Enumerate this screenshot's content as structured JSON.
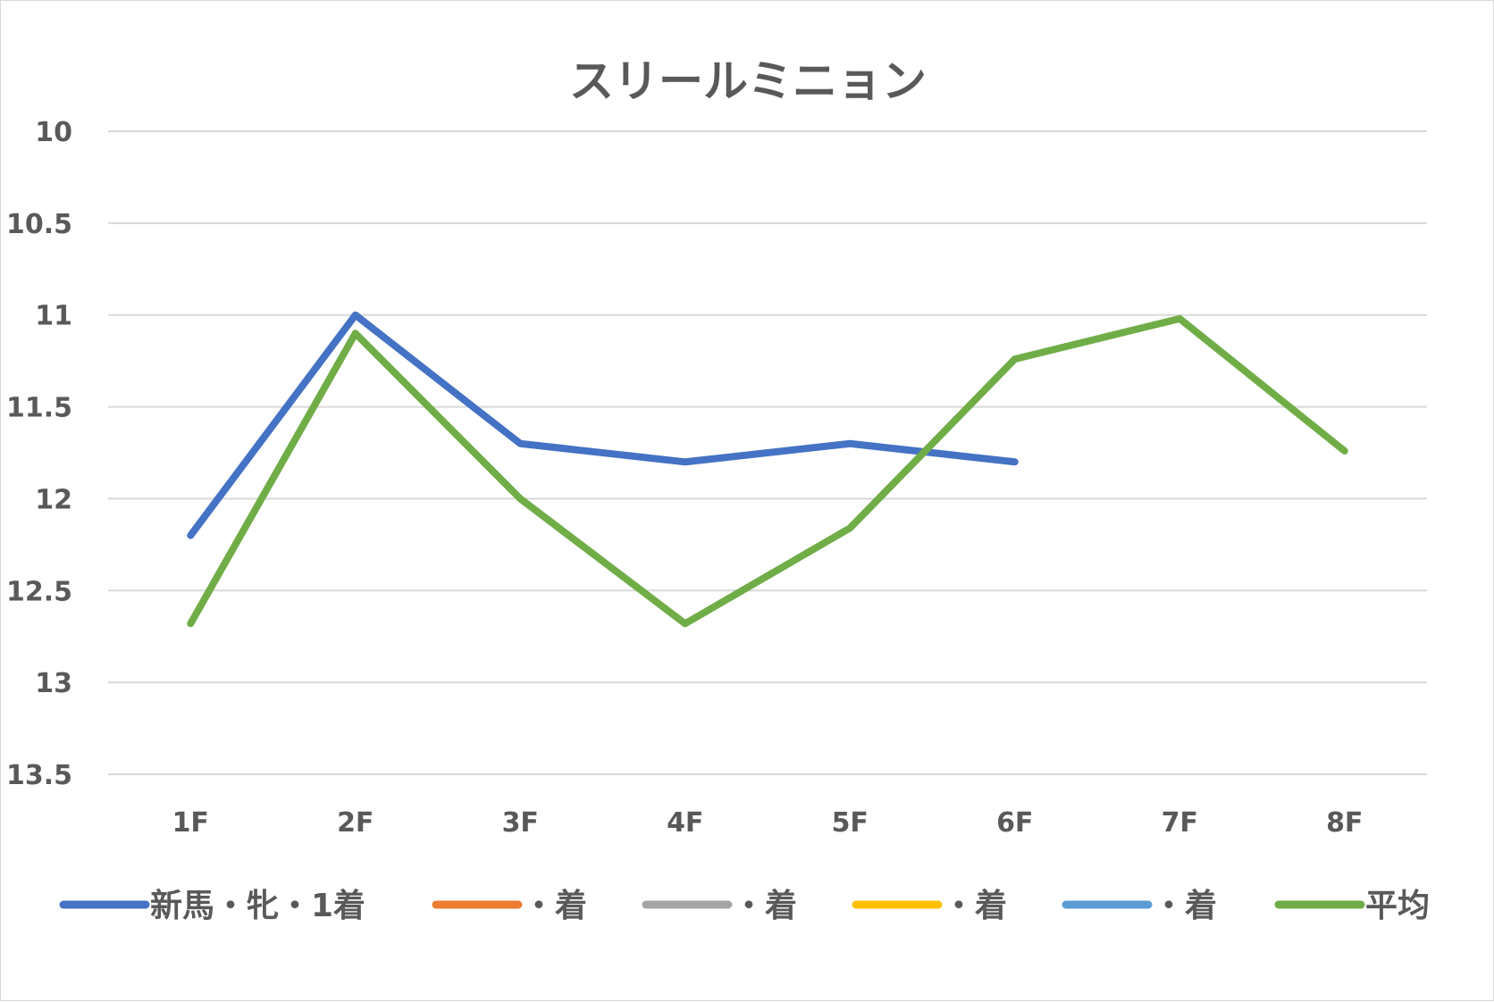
{
  "chart_data": {
    "type": "line",
    "title": "スリールミニョン",
    "categories": [
      "1F",
      "2F",
      "3F",
      "4F",
      "5F",
      "6F",
      "7F",
      "8F"
    ],
    "y_ticks": [
      "10",
      "10.5",
      "11",
      "11.5",
      "12",
      "12.5",
      "13",
      "13.5"
    ],
    "ylim": [
      10,
      13.5
    ],
    "y_reversed": true,
    "grid": true,
    "legend_position": "bottom",
    "series": [
      {
        "name": "新馬・牝・1着",
        "color": "#4472c4",
        "values": [
          12.2,
          11.0,
          11.7,
          11.8,
          11.7,
          11.8,
          null,
          null
        ]
      },
      {
        "name": "・着",
        "color": "#ed7d31",
        "values": [
          null,
          null,
          null,
          null,
          null,
          null,
          null,
          null
        ]
      },
      {
        "name": "・着",
        "color": "#a5a5a5",
        "values": [
          null,
          null,
          null,
          null,
          null,
          null,
          null,
          null
        ]
      },
      {
        "name": "・着",
        "color": "#ffc000",
        "values": [
          null,
          null,
          null,
          null,
          null,
          null,
          null,
          null
        ]
      },
      {
        "name": "・着",
        "color": "#5b9bd5",
        "values": [
          null,
          null,
          null,
          null,
          null,
          null,
          null,
          null
        ]
      },
      {
        "name": "平均",
        "color": "#70ad47",
        "values": [
          12.68,
          11.1,
          12.0,
          12.68,
          12.16,
          11.24,
          11.02,
          11.74
        ]
      }
    ]
  }
}
